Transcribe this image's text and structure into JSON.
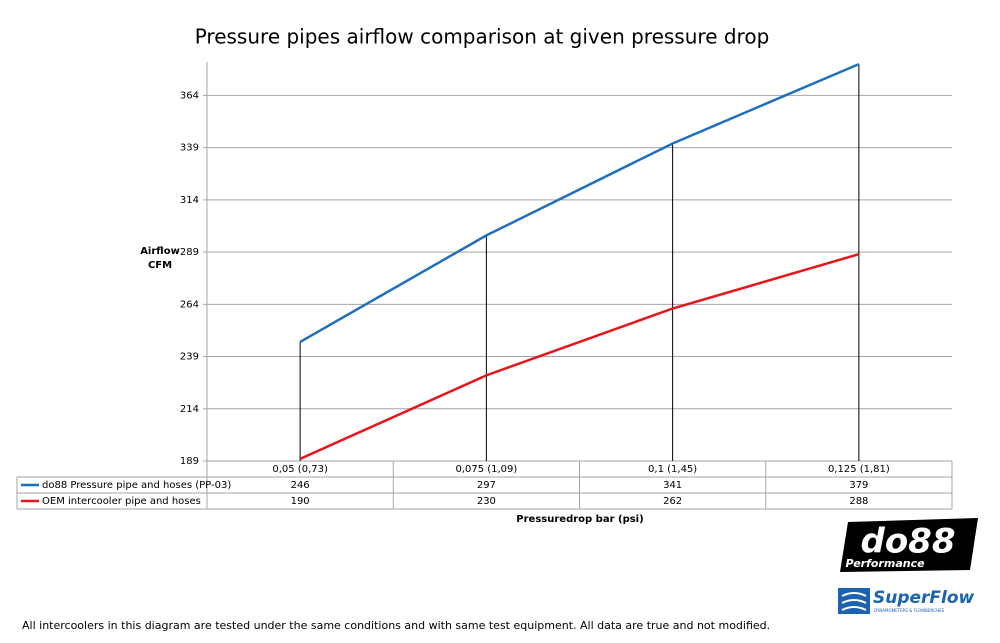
{
  "chart_data": {
    "type": "line",
    "title": "Pressure pipes airflow comparison at given pressure drop",
    "ylabel": [
      "Airflow",
      "CFM"
    ],
    "xlabel": "Pressuredrop bar (psi)",
    "categories": [
      "0,05 (0,73)",
      "0,075 (1,09)",
      "0,1 (1,45)",
      "0,125 (1,81)"
    ],
    "series": [
      {
        "name": "do88 Pressure pipe and hoses (PP-03)",
        "color": "#1f6fc1",
        "values": [
          246,
          297,
          341,
          379
        ]
      },
      {
        "name": "OEM intercooler pipe and hoses",
        "color": "#e8141b",
        "values": [
          190,
          230,
          262,
          288
        ]
      }
    ],
    "ylim": [
      189,
      380
    ],
    "yticks": [
      189,
      214,
      239,
      264,
      289,
      314,
      339,
      364
    ],
    "grid": true,
    "drop_lines": true,
    "footnote": "All intercoolers in this diagram are tested under the same conditions and with same test equipment. All data are true and not modified.",
    "logos": {
      "brand": "do88",
      "brand_sub": "Performance",
      "partner": "SuperFlow",
      "partner_sub": "DYNAMOMETERS & FLOWBENCHES"
    }
  }
}
